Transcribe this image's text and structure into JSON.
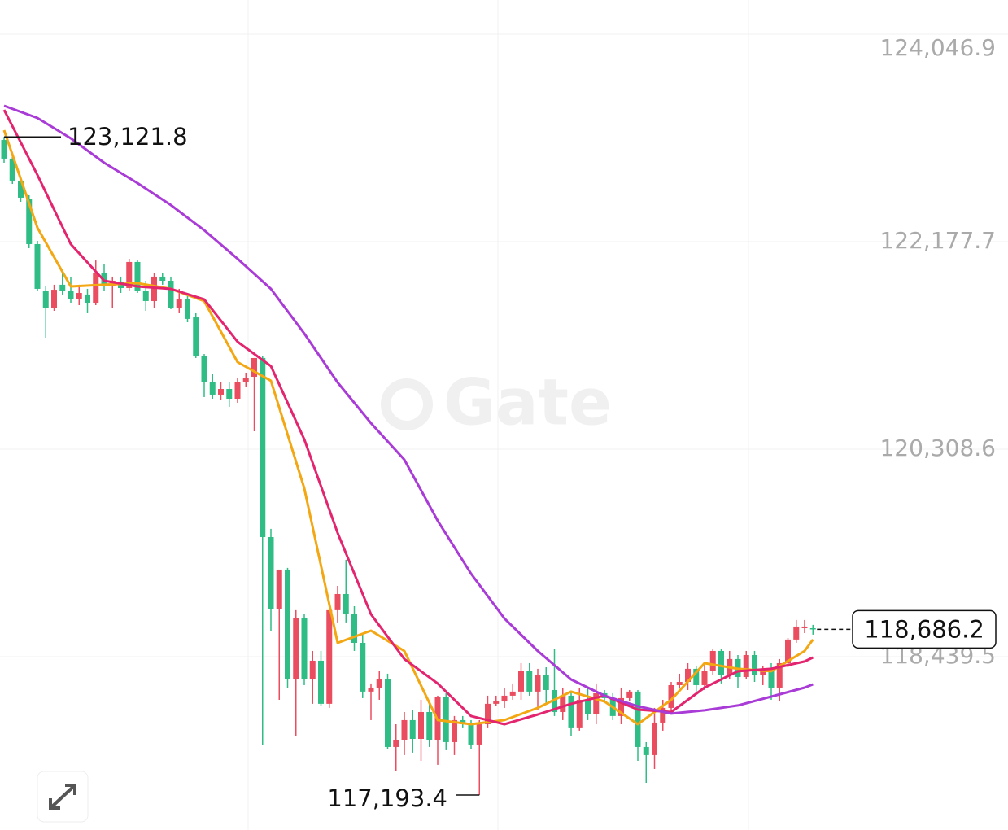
{
  "chart_data": {
    "type": "candlestick",
    "up_color": "#ea4d5f",
    "down_color": "#2fbd85",
    "ylim": [
      116878,
      124355
    ],
    "yticks": [
      {
        "value": 124046.9,
        "label": "124,046.9"
      },
      {
        "value": 122177.7,
        "label": "122,177.7"
      },
      {
        "value": 120308.6,
        "label": "120,308.6"
      },
      {
        "value": 118439.5,
        "label": "118,439.5"
      }
    ],
    "grid": true,
    "ohlc": [
      [
        123094,
        123121.8,
        122889,
        122926
      ],
      [
        122926,
        122962,
        122698,
        122728
      ],
      [
        122728,
        122757,
        122537,
        122574
      ],
      [
        122559,
        122596,
        122119,
        122156
      ],
      [
        122156,
        122185,
        121731,
        121753
      ],
      [
        121731,
        121775,
        121313,
        121584
      ],
      [
        121584,
        121790,
        121555,
        121745
      ],
      [
        121790,
        121936,
        121702,
        121738
      ],
      [
        121738,
        121863,
        121628,
        121658
      ],
      [
        121658,
        121790,
        121606,
        121716
      ],
      [
        121702,
        121753,
        121533,
        121628
      ],
      [
        121628,
        122009,
        121606,
        121899
      ],
      [
        121899,
        121973,
        121731,
        121775
      ],
      [
        121775,
        121863,
        121584,
        121826
      ],
      [
        121819,
        121863,
        121716,
        121760
      ],
      [
        121760,
        122024,
        121731,
        121995
      ],
      [
        121995,
        122009,
        121716,
        121738
      ],
      [
        121738,
        121826,
        121555,
        121643
      ],
      [
        121643,
        121899,
        121584,
        121863
      ],
      [
        121863,
        121899,
        121790,
        121826
      ],
      [
        121826,
        121863,
        121570,
        121584
      ],
      [
        121584,
        121753,
        121533,
        121658
      ],
      [
        121658,
        121716,
        121452,
        121482
      ],
      [
        121496,
        121533,
        121130,
        121145
      ],
      [
        121145,
        121166,
        120778,
        120910
      ],
      [
        120910,
        120983,
        120763,
        120800
      ],
      [
        120800,
        120910,
        120749,
        120851
      ],
      [
        120851,
        120910,
        120690,
        120763
      ],
      [
        120763,
        120947,
        120727,
        120910
      ],
      [
        120910,
        120998,
        120873,
        120947
      ],
      [
        120961,
        121130,
        120470,
        121130
      ],
      [
        121130,
        121145,
        117648,
        119517
      ],
      [
        119517,
        119591,
        118674,
        118872
      ],
      [
        118872,
        119224,
        118051,
        119224
      ],
      [
        119224,
        119239,
        118161,
        118234
      ],
      [
        118234,
        118858,
        117721,
        118784
      ],
      [
        118784,
        118821,
        118183,
        118234
      ],
      [
        118234,
        118491,
        118015,
        118403
      ],
      [
        118403,
        118491,
        117993,
        118015
      ],
      [
        118015,
        118894,
        117978,
        118858
      ],
      [
        118858,
        119077,
        118748,
        119004
      ],
      [
        119004,
        119312,
        118748,
        118821
      ],
      [
        118821,
        118894,
        118491,
        118564
      ],
      [
        118564,
        118638,
        118066,
        118125
      ],
      [
        118125,
        118198,
        117868,
        118161
      ],
      [
        118161,
        118308,
        118051,
        118234
      ],
      [
        118234,
        118286,
        117611,
        117626
      ],
      [
        117626,
        117831,
        117406,
        117685
      ],
      [
        117685,
        117941,
        117553,
        117868
      ],
      [
        117868,
        117963,
        117575,
        117699
      ],
      [
        117699,
        118051,
        117501,
        117941
      ],
      [
        117941,
        118015,
        117626,
        117685
      ],
      [
        117685,
        118088,
        117465,
        118073
      ],
      [
        118073,
        118110,
        117597,
        117670
      ],
      [
        117670,
        117905,
        117553,
        117868
      ],
      [
        117868,
        117905,
        117795,
        117831
      ],
      [
        117831,
        117868,
        117611,
        117648
      ],
      [
        117648,
        117868,
        117193.4,
        117831
      ],
      [
        117831,
        118088,
        117795,
        118015
      ],
      [
        118015,
        118088,
        117993,
        118036
      ],
      [
        118036,
        118161,
        117978,
        118088
      ],
      [
        118088,
        118198,
        118051,
        118125
      ],
      [
        118125,
        118381,
        118051,
        118308
      ],
      [
        118308,
        118381,
        118088,
        118125
      ],
      [
        118125,
        118330,
        117963,
        118271
      ],
      [
        118271,
        118344,
        118015,
        118139
      ],
      [
        118139,
        118506,
        117905,
        117941
      ],
      [
        117941,
        118161,
        117868,
        118088
      ],
      [
        118088,
        118125,
        117721,
        117795
      ],
      [
        117795,
        118161,
        117773,
        118051
      ],
      [
        118051,
        118161,
        117868,
        117919
      ],
      [
        117919,
        118198,
        117831,
        118110
      ],
      [
        118110,
        118139,
        118036,
        118066
      ],
      [
        118066,
        118110,
        117868,
        117905
      ],
      [
        117905,
        118161,
        117831,
        118066
      ],
      [
        118066,
        118139,
        118036,
        118125
      ],
      [
        118125,
        118139,
        117501,
        117626
      ],
      [
        117626,
        117670,
        117303,
        117553
      ],
      [
        117553,
        117978,
        117428,
        117846
      ],
      [
        117846,
        118051,
        117773,
        117978
      ],
      [
        117978,
        118212,
        117941,
        118183
      ],
      [
        118183,
        118286,
        118161,
        118212
      ],
      [
        118212,
        118381,
        118139,
        118330
      ],
      [
        118330,
        118359,
        118125,
        118183
      ],
      [
        118183,
        118381,
        118139,
        118308
      ],
      [
        118308,
        118506,
        118271,
        118491
      ],
      [
        118491,
        118506,
        118198,
        118271
      ],
      [
        118271,
        118491,
        118234,
        118418
      ],
      [
        118418,
        118454,
        118161,
        118256
      ],
      [
        118256,
        118491,
        118234,
        118454
      ],
      [
        118454,
        118491,
        118212,
        118271
      ],
      [
        118271,
        118359,
        118183,
        118330
      ],
      [
        118330,
        118381,
        118051,
        118161
      ],
      [
        118161,
        118418,
        118036,
        118381
      ],
      [
        118381,
        118608,
        118344,
        118594
      ],
      [
        118594,
        118770,
        118564,
        118711
      ],
      [
        118696,
        118770,
        118652,
        118711
      ],
      [
        118696,
        118726,
        118638,
        118686.2
      ]
    ],
    "ma_x": [
      0,
      4,
      8,
      12,
      16,
      20,
      24,
      28,
      32,
      36,
      40,
      44,
      48,
      52,
      56,
      60,
      64,
      68,
      72,
      76,
      80,
      84,
      88,
      92,
      96,
      97
    ],
    "lines": [
      {
        "color": "#f3a712",
        "values": [
          123182,
          122303,
          121775,
          121790,
          121804,
          121753,
          121643,
          121093,
          120925,
          119957,
          118564,
          118674,
          118491,
          117868,
          117831,
          117868,
          117978,
          118125,
          118036,
          117831,
          118051,
          118381,
          118330,
          118308,
          118491,
          118594
        ]
      },
      {
        "color": "#e3246e",
        "values": [
          123365,
          122779,
          122156,
          121826,
          121775,
          121753,
          121658,
          121276,
          121057,
          120397,
          119554,
          118821,
          118418,
          118198,
          117905,
          117831,
          117919,
          118015,
          118088,
          117963,
          117941,
          118161,
          118308,
          118330,
          118396,
          118432
        ]
      },
      {
        "color": "#a93bd6",
        "values": [
          123402,
          123292,
          123109,
          122889,
          122706,
          122508,
          122281,
          122024,
          121753,
          121350,
          120910,
          120543,
          120214,
          119664,
          119187,
          118784,
          118491,
          118234,
          118088,
          117993,
          117927,
          117956,
          118000,
          118080,
          118161,
          118190
        ]
      }
    ],
    "max_label": "123,121.8",
    "min_label": "117,193.4",
    "last_label": "118,686.2",
    "watermark": "Gate"
  }
}
